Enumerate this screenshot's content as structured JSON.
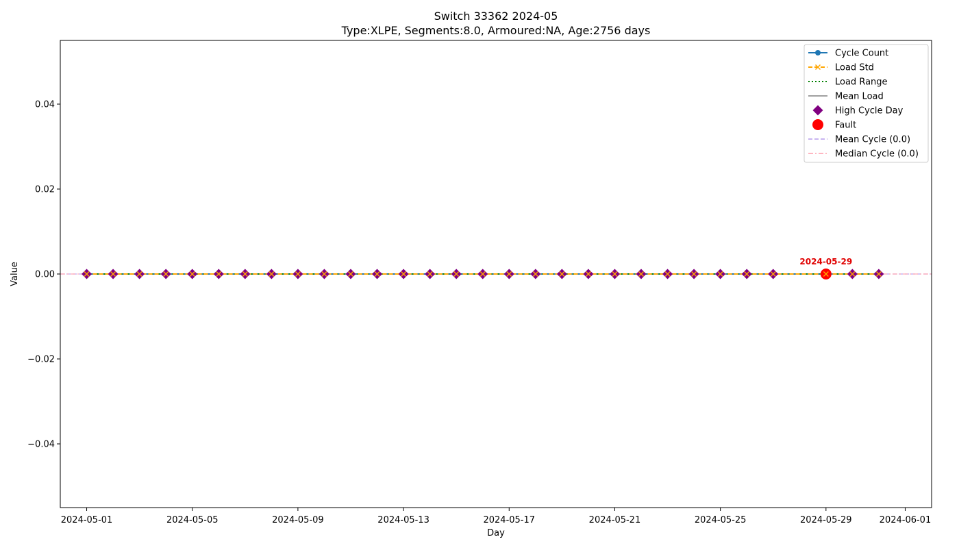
{
  "chart_data": {
    "type": "line",
    "title": "Switch 33362 2024-05",
    "subtitle": "Type:XLPE, Segments:8.0, Armoured:NA, Age:2756 days",
    "xlabel": "Day",
    "ylabel": "Value",
    "xlim": [
      "2024-04-30",
      "2024-06-02"
    ],
    "ylim": [
      -0.055,
      0.055
    ],
    "x_ticks": [
      "2024-05-01",
      "2024-05-05",
      "2024-05-09",
      "2024-05-13",
      "2024-05-17",
      "2024-05-21",
      "2024-05-25",
      "2024-05-29",
      "2024-06-01"
    ],
    "y_ticks": [
      {
        "value": -0.04,
        "label": "−0.04"
      },
      {
        "value": -0.02,
        "label": "−0.02"
      },
      {
        "value": 0,
        "label": "0.00"
      },
      {
        "value": 0.02,
        "label": "0.02"
      },
      {
        "value": 0.04,
        "label": "0.04"
      }
    ],
    "grid": false,
    "legend_placement": "top-right",
    "x": [
      "2024-05-01",
      "2024-05-02",
      "2024-05-03",
      "2024-05-04",
      "2024-05-05",
      "2024-05-06",
      "2024-05-07",
      "2024-05-08",
      "2024-05-09",
      "2024-05-10",
      "2024-05-11",
      "2024-05-12",
      "2024-05-13",
      "2024-05-14",
      "2024-05-15",
      "2024-05-16",
      "2024-05-17",
      "2024-05-18",
      "2024-05-19",
      "2024-05-20",
      "2024-05-21",
      "2024-05-22",
      "2024-05-23",
      "2024-05-24",
      "2024-05-25",
      "2024-05-26",
      "2024-05-27",
      "2024-05-29",
      "2024-05-30",
      "2024-05-31"
    ],
    "series": [
      {
        "name": "Cycle Count",
        "color": "#1f77b4",
        "style": "solid",
        "marker": "circle",
        "values": [
          0,
          0,
          0,
          0,
          0,
          0,
          0,
          0,
          0,
          0,
          0,
          0,
          0,
          0,
          0,
          0,
          0,
          0,
          0,
          0,
          0,
          0,
          0,
          0,
          0,
          0,
          0,
          0,
          0,
          0
        ]
      },
      {
        "name": "Load Std",
        "color": "#ffa500",
        "style": "dashed",
        "marker": "x",
        "values": [
          0,
          0,
          0,
          0,
          0,
          0,
          0,
          0,
          0,
          0,
          0,
          0,
          0,
          0,
          0,
          0,
          0,
          0,
          0,
          0,
          0,
          0,
          0,
          0,
          0,
          0,
          0,
          0,
          0,
          0
        ]
      },
      {
        "name": "Load Range",
        "color": "#008000",
        "style": "dotted",
        "marker": "none",
        "values": [
          0,
          0,
          0,
          0,
          0,
          0,
          0,
          0,
          0,
          0,
          0,
          0,
          0,
          0,
          0,
          0,
          0,
          0,
          0,
          0,
          0,
          0,
          0,
          0,
          0,
          0,
          0,
          0,
          0,
          0
        ]
      },
      {
        "name": "Mean Load",
        "color": "#a0a0a0",
        "style": "solid",
        "marker": "none",
        "values": [
          0,
          0,
          0,
          0,
          0,
          0,
          0,
          0,
          0,
          0,
          0,
          0,
          0,
          0,
          0,
          0,
          0,
          0,
          0,
          0,
          0,
          0,
          0,
          0,
          0,
          0,
          0,
          0,
          0,
          0
        ]
      }
    ],
    "high_cycle_days": {
      "name": "High Cycle Day",
      "color": "#800080",
      "marker": "diamond",
      "x": [
        "2024-05-01",
        "2024-05-02",
        "2024-05-03",
        "2024-05-04",
        "2024-05-05",
        "2024-05-06",
        "2024-05-07",
        "2024-05-08",
        "2024-05-09",
        "2024-05-10",
        "2024-05-11",
        "2024-05-12",
        "2024-05-13",
        "2024-05-14",
        "2024-05-15",
        "2024-05-16",
        "2024-05-17",
        "2024-05-18",
        "2024-05-19",
        "2024-05-20",
        "2024-05-21",
        "2024-05-22",
        "2024-05-23",
        "2024-05-24",
        "2024-05-25",
        "2024-05-26",
        "2024-05-27",
        "2024-05-29",
        "2024-05-30",
        "2024-05-31"
      ],
      "y": [
        0,
        0,
        0,
        0,
        0,
        0,
        0,
        0,
        0,
        0,
        0,
        0,
        0,
        0,
        0,
        0,
        0,
        0,
        0,
        0,
        0,
        0,
        0,
        0,
        0,
        0,
        0,
        0,
        0,
        0
      ]
    },
    "faults": {
      "name": "Fault",
      "color": "#ff0000",
      "marker": "circle",
      "points": [
        {
          "x": "2024-05-29",
          "y": 0,
          "label": "2024-05-29"
        }
      ]
    },
    "reference_lines": [
      {
        "name": "Mean Cycle (0.0)",
        "value": 0,
        "color": "#c8b4f0",
        "style": "dashed"
      },
      {
        "name": "Median Cycle (0.0)",
        "value": 0,
        "color": "#ffb6c1",
        "style": "dashdot"
      }
    ]
  }
}
